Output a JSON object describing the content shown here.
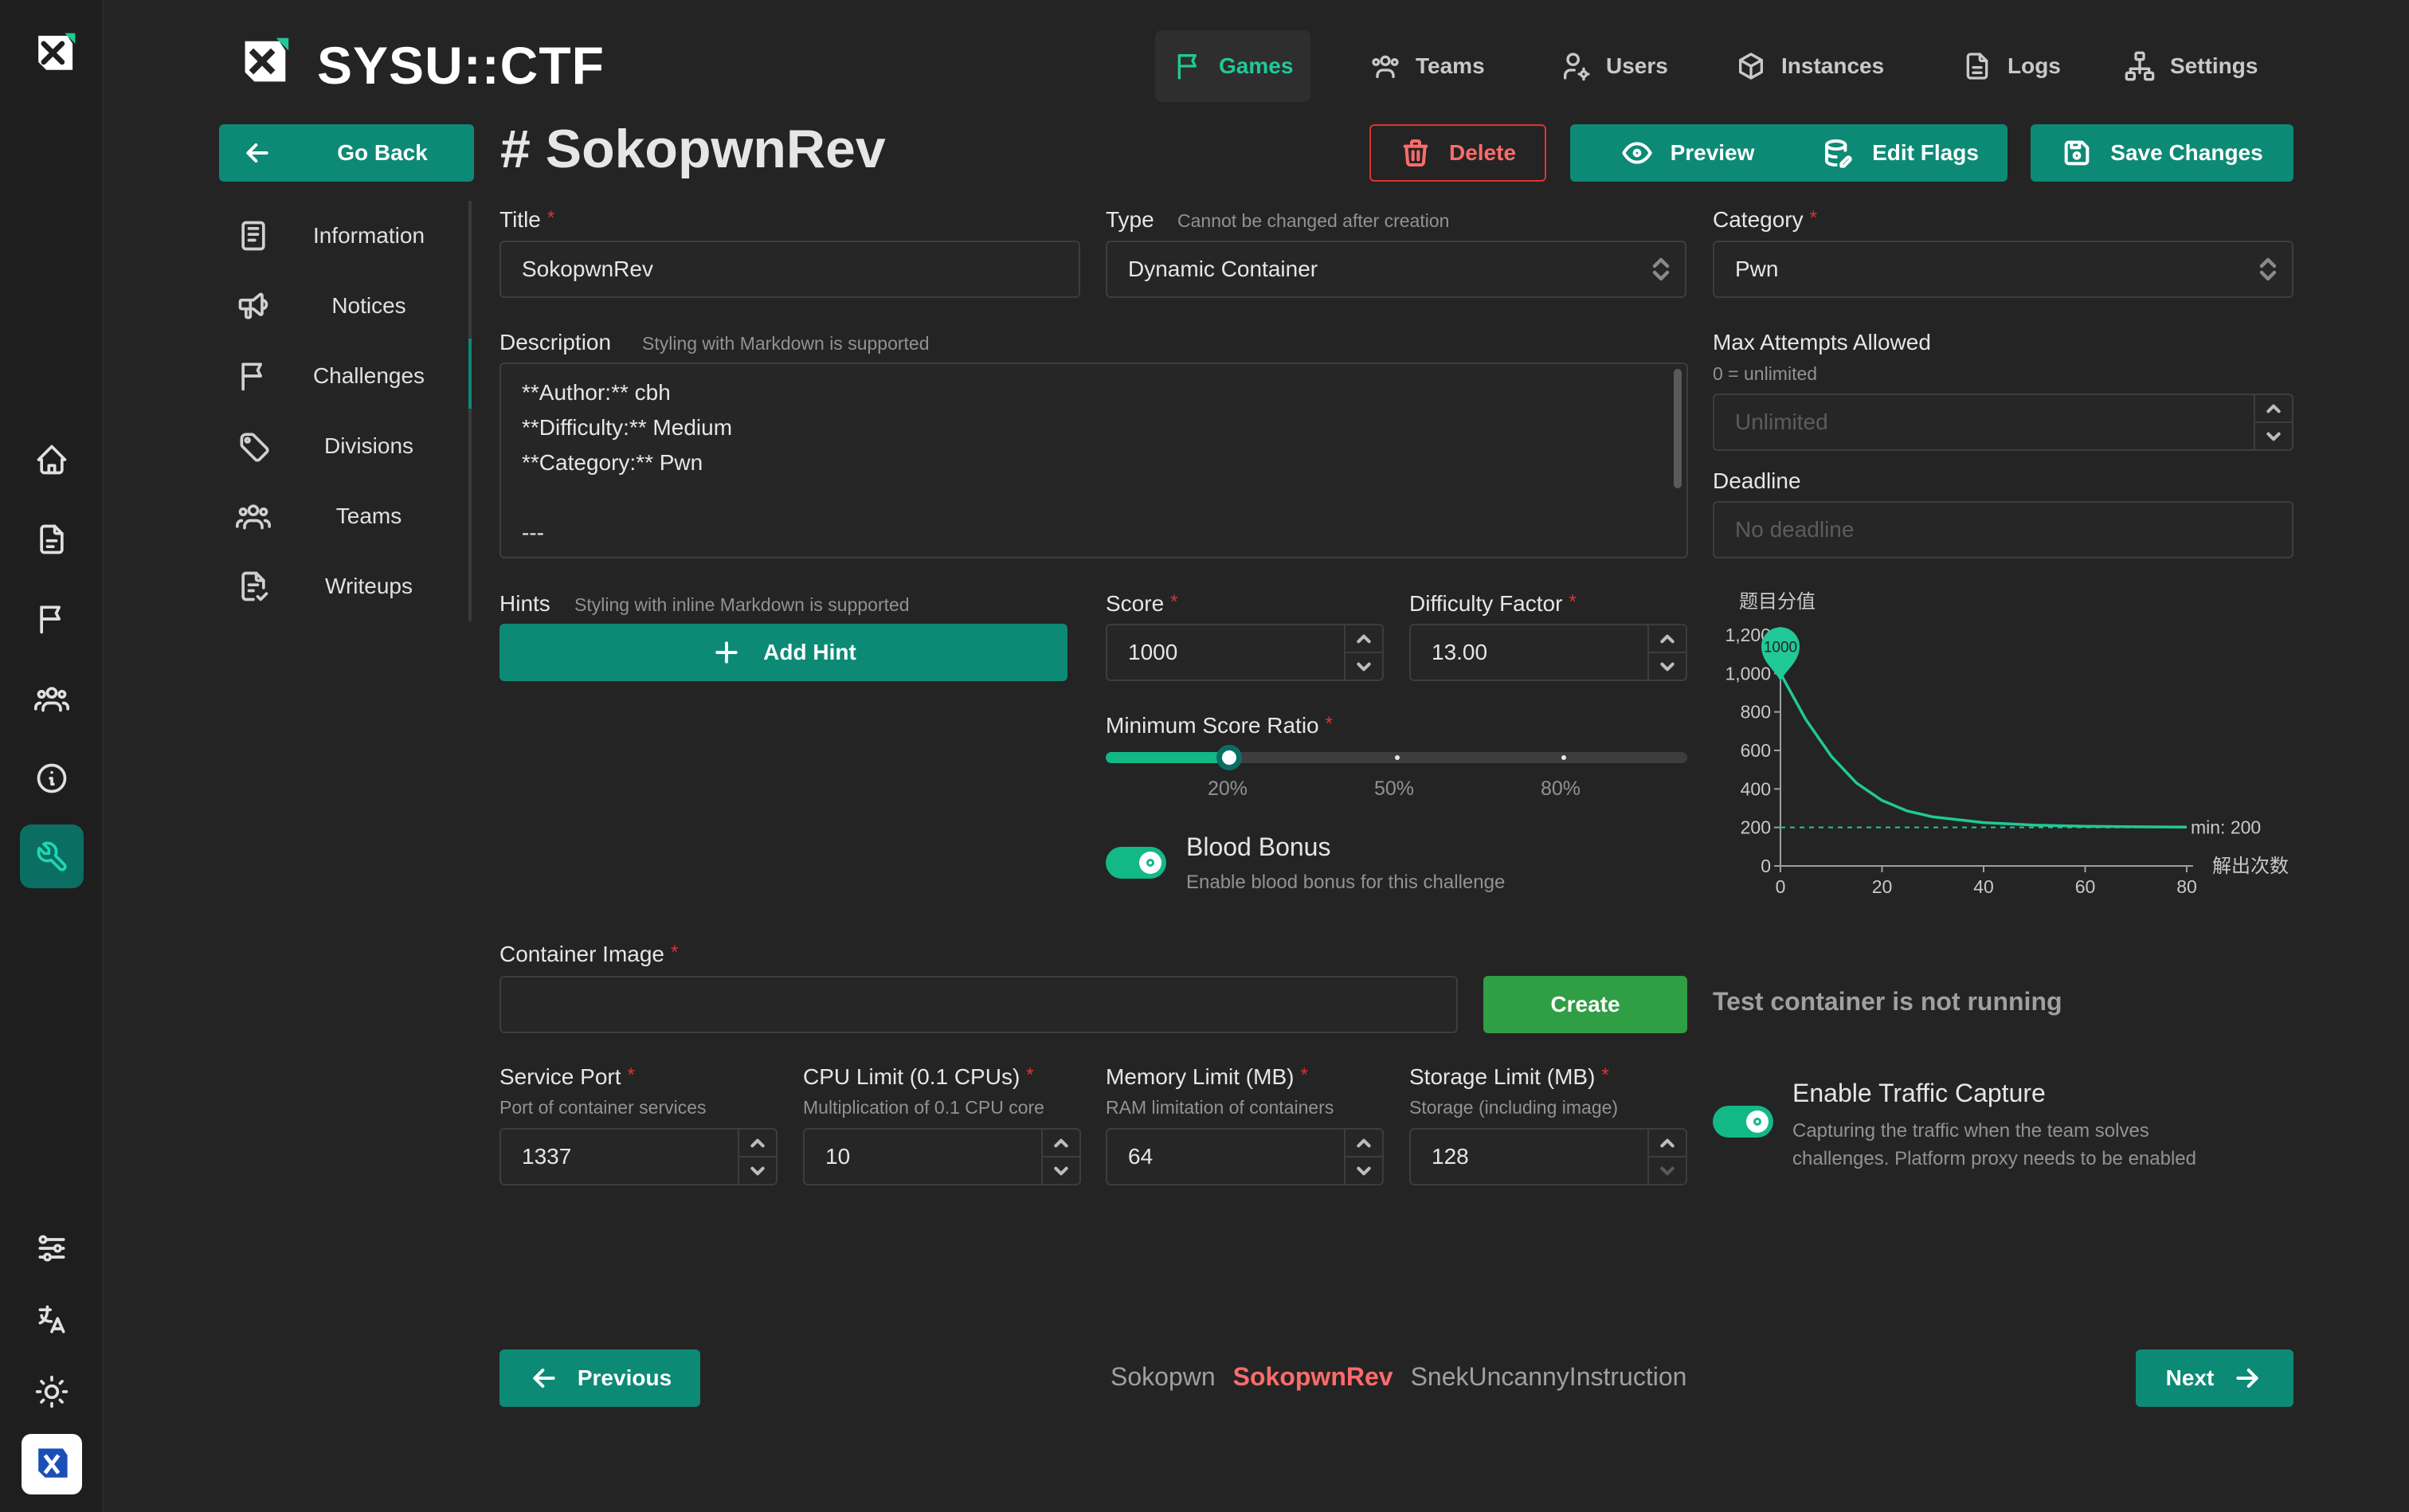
{
  "app": {
    "brand": "SYSU::CTF"
  },
  "top_nav": [
    {
      "label": "Games",
      "icon": "flag-icon",
      "active": true
    },
    {
      "label": "Teams",
      "icon": "users-group-icon"
    },
    {
      "label": "Users",
      "icon": "user-cog-icon"
    },
    {
      "label": "Instances",
      "icon": "box-icon"
    },
    {
      "label": "Logs",
      "icon": "file-icon"
    },
    {
      "label": "Settings",
      "icon": "hierarchy-icon"
    }
  ],
  "header": {
    "back_label": "Go Back",
    "title": "# SokopwnRev",
    "delete_label": "Delete",
    "preview_label": "Preview",
    "edit_flags_label": "Edit Flags",
    "save_label": "Save Changes"
  },
  "sidebar": {
    "items": [
      {
        "label": "Information",
        "icon": "notes-icon"
      },
      {
        "label": "Notices",
        "icon": "speakerphone-icon"
      },
      {
        "label": "Challenges",
        "icon": "flag-icon",
        "active": true
      },
      {
        "label": "Divisions",
        "icon": "tag-icon"
      },
      {
        "label": "Teams",
        "icon": "users-group-icon"
      },
      {
        "label": "Writeups",
        "icon": "file-check-icon"
      }
    ]
  },
  "form": {
    "title": {
      "label": "Title",
      "value": "SokopwnRev"
    },
    "type": {
      "label": "Type",
      "description": "Cannot be changed after creation",
      "value": "Dynamic Container"
    },
    "category": {
      "label": "Category",
      "value": "Pwn"
    },
    "description": {
      "label": "Description",
      "hint": "Styling with Markdown is supported",
      "lines": [
        "**Author:** cbh",
        "**Difficulty:** Medium",
        "**Category:** Pwn",
        "",
        "---"
      ]
    },
    "max_attempts": {
      "label": "Max Attempts Allowed",
      "description": "0 = unlimited",
      "placeholder": "Unlimited"
    },
    "deadline": {
      "label": "Deadline",
      "placeholder": "No deadline"
    },
    "hints": {
      "label": "Hints",
      "description": "Styling with inline Markdown is supported",
      "add_label": "Add Hint"
    },
    "score": {
      "label": "Score",
      "value": "1000"
    },
    "difficulty": {
      "label": "Difficulty Factor",
      "value": "13.00"
    },
    "min_ratio": {
      "label": "Minimum Score Ratio",
      "value": 0.2,
      "marks": [
        "20%",
        "50%",
        "80%"
      ]
    },
    "blood_bonus": {
      "label": "Blood Bonus",
      "description": "Enable blood bonus for this challenge",
      "enabled": true
    },
    "container_image": {
      "label": "Container Image",
      "value": "",
      "create_label": "Create",
      "status": "Test container is not running"
    },
    "service_port": {
      "label": "Service Port",
      "description": "Port of container services",
      "value": "1337"
    },
    "cpu_limit": {
      "label": "CPU Limit (0.1 CPUs)",
      "description": "Multiplication of 0.1 CPU core",
      "value": "10"
    },
    "memory_limit": {
      "label": "Memory Limit (MB)",
      "description": "RAM limitation of containers",
      "value": "64"
    },
    "storage_limit": {
      "label": "Storage Limit (MB)",
      "description": "Storage (including image)",
      "value": "128"
    },
    "traffic_capture": {
      "label": "Enable Traffic Capture",
      "description_lines": [
        "Capturing the traffic when the team solves",
        "challenges. Platform proxy needs to be enabled"
      ],
      "enabled": true
    }
  },
  "chart_data": {
    "type": "line",
    "ylabel": "题目分值",
    "xlabel": "解出次数",
    "xlim": [
      0,
      80
    ],
    "ylim": [
      0,
      1200
    ],
    "xticks": [
      "0",
      "20",
      "40",
      "60",
      "80"
    ],
    "yticks": [
      "0",
      "200",
      "400",
      "600",
      "800",
      "1,000",
      "1,200"
    ],
    "series": [
      {
        "x": [
          0,
          5,
          10,
          15,
          20,
          25,
          30,
          40,
          50,
          60,
          70,
          80
        ],
        "y": [
          1000,
          760,
          570,
          430,
          340,
          285,
          255,
          225,
          212,
          206,
          203,
          202
        ]
      }
    ],
    "start_label": "1000",
    "min_line": {
      "value": 200,
      "label": "min: 200"
    },
    "color": "#20c997"
  },
  "footer": {
    "prev_label": "Previous",
    "next_label": "Next",
    "prev_challenge": "Sokopwn",
    "current_challenge": "SokopwnRev",
    "next_challenge": "SnekUncannyInstruction"
  }
}
